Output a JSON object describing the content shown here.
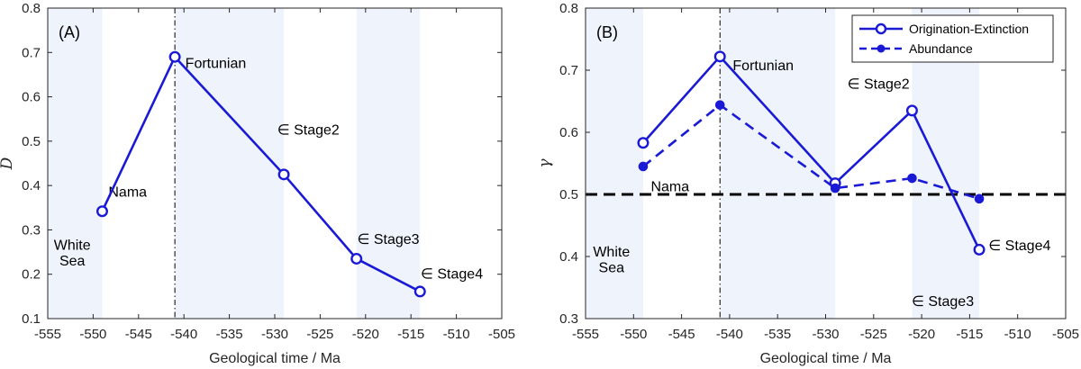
{
  "chart_data": [
    {
      "type": "line",
      "panel_tag": "(A)",
      "xlabel": "Geological time / Ma",
      "ylabel": "D",
      "xlim": [
        -555,
        -505
      ],
      "ylim": [
        0.1,
        0.8
      ],
      "x_ticks": [
        "-555",
        "-550",
        "-545",
        "-540",
        "-535",
        "-530",
        "-525",
        "-520",
        "-515",
        "-510",
        "-505"
      ],
      "y_ticks": [
        "0.1",
        "0.2",
        "0.3",
        "0.4",
        "0.5",
        "0.6",
        "0.7",
        "0.8"
      ],
      "shaded_intervals": [
        [
          -555,
          -549
        ],
        [
          -541,
          -529
        ],
        [
          -521,
          -514
        ]
      ],
      "vertical_dashdot_line": -541,
      "series": [
        {
          "x": [
            -549,
            -541,
            -529,
            -521,
            -514
          ],
          "y": [
            0.342,
            0.69,
            0.425,
            0.235,
            0.161
          ],
          "style": "solid-open-circle",
          "color": "#1a1ad6"
        }
      ],
      "annotations": [
        {
          "text": "White",
          "x": -552.3,
          "y": 0.255
        },
        {
          "text": "Sea",
          "x": -552.3,
          "y": 0.22
        },
        {
          "text": "Nama",
          "x": -546.2,
          "y": 0.375
        },
        {
          "text": "Fortunian",
          "x": -536.5,
          "y": 0.665
        },
        {
          "text": "∈ Stage2",
          "x": -526.3,
          "y": 0.515
        },
        {
          "text": "∈ Stage3",
          "x": -517.5,
          "y": 0.268
        },
        {
          "text": "∈ Stage4",
          "x": -510.5,
          "y": 0.19
        }
      ]
    },
    {
      "type": "line",
      "panel_tag": "(B)",
      "xlabel": "Geological time / Ma",
      "ylabel": "γ",
      "xlim": [
        -555,
        -505
      ],
      "ylim": [
        0.3,
        0.8
      ],
      "x_ticks": [
        "-555",
        "-550",
        "-545",
        "-540",
        "-535",
        "-530",
        "-525",
        "-520",
        "-515",
        "-510",
        "-505"
      ],
      "y_ticks": [
        "0.3",
        "0.4",
        "0.5",
        "0.6",
        "0.7",
        "0.8"
      ],
      "shaded_intervals": [
        [
          -555,
          -549
        ],
        [
          -541,
          -529
        ],
        [
          -521,
          -514
        ]
      ],
      "vertical_dashdot_line": -541,
      "reference_line": 0.5,
      "legend_position": "top-right",
      "series": [
        {
          "name": "Origination-Extinction",
          "x": [
            -549,
            -541,
            -529,
            -521,
            -514
          ],
          "y": [
            0.583,
            0.722,
            0.518,
            0.635,
            0.411
          ],
          "style": "solid-open-circle",
          "color": "#1a1ad6"
        },
        {
          "name": "Abundance",
          "x": [
            -549,
            -541,
            -529,
            -521,
            -514
          ],
          "y": [
            0.545,
            0.644,
            0.51,
            0.526,
            0.493
          ],
          "style": "dashed-filled-dot",
          "color": "#1a1ad6"
        }
      ],
      "annotations": [
        {
          "text": "White",
          "x": -552.3,
          "y": 0.4
        },
        {
          "text": "Sea",
          "x": -552.3,
          "y": 0.375
        },
        {
          "text": "Nama",
          "x": -546.2,
          "y": 0.505
        },
        {
          "text": "Fortunian",
          "x": -536.5,
          "y": 0.7
        },
        {
          "text": "∈ Stage2",
          "x": -524.5,
          "y": 0.67
        },
        {
          "text": "∈ Stage3",
          "x": -517.8,
          "y": 0.32
        },
        {
          "text": "∈ Stage4",
          "x": -509.8,
          "y": 0.41
        }
      ]
    }
  ]
}
